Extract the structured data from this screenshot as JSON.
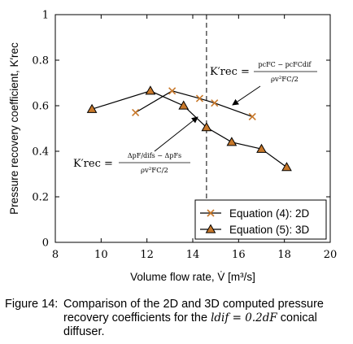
{
  "chart_data": {
    "type": "line",
    "xlabel": "Volume flow rate, V̇ [m³/s]",
    "ylabel": "Pressure recovery coefficient, K′rec",
    "xlim": [
      8,
      20
    ],
    "ylim": [
      0,
      1
    ],
    "x_ticks": [
      "8",
      "10",
      "12",
      "14",
      "16",
      "18",
      "20"
    ],
    "y_ticks": [
      "0",
      "0.2",
      "0.4",
      "0.6",
      "0.8",
      "1"
    ],
    "grid": false,
    "legend_position": "bottom-right",
    "vertical_line_x": 14.6,
    "series": [
      {
        "name": "Equation (4): 2D",
        "marker": "x",
        "color": "#c8782a",
        "points": [
          [
            11.5,
            0.57
          ],
          [
            13.1,
            0.665
          ],
          [
            14.3,
            0.632
          ],
          [
            14.95,
            0.612
          ],
          [
            16.6,
            0.552
          ]
        ]
      },
      {
        "name": "Equation (5): 3D",
        "marker": "triangle",
        "color": "#c8782a",
        "points": [
          [
            9.6,
            0.585
          ],
          [
            12.15,
            0.665
          ],
          [
            13.6,
            0.6
          ],
          [
            14.6,
            0.505
          ],
          [
            15.7,
            0.44
          ],
          [
            17.0,
            0.41
          ],
          [
            18.1,
            0.33
          ]
        ]
      }
    ],
    "annotations": [
      {
        "lhs": "K′rec =",
        "numerator": "pcFC − pcFCdif",
        "denominator": "ρv²FC/2"
      },
      {
        "lhs": "K′rec =",
        "numerator": "ΔpF/difs − ΔpFs",
        "denominator": "ρv²FC/2"
      }
    ]
  },
  "caption": {
    "label": "Figure 14:",
    "text_before": "Comparison of the 2D and 3D computed pressure recovery coefficients for the",
    "math": "ldif = 0.2dF",
    "text_after": "conical diffuser."
  },
  "colors": {
    "marker_fill": "#c8782a",
    "line": "#000000"
  }
}
